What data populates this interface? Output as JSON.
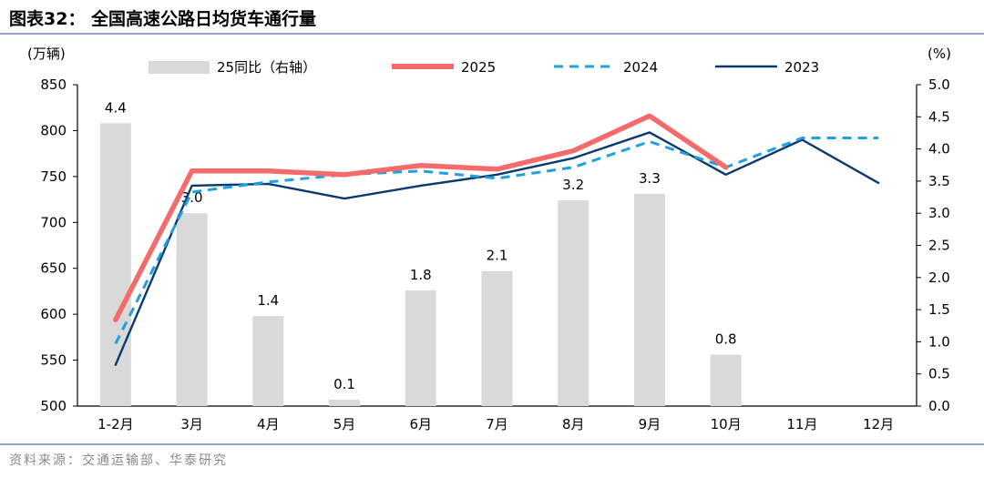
{
  "header": {
    "title": "图表32：  全国高速公路日均货车通行量"
  },
  "source": "资料来源：交通运输部、华泰研究",
  "chart_data": {
    "type": "bar+line",
    "categories": [
      "1-2月",
      "3月",
      "4月",
      "5月",
      "6月",
      "7月",
      "8月",
      "9月",
      "10月",
      "11月",
      "12月"
    ],
    "left_axis": {
      "unit": "(万辆)",
      "ylim": [
        500,
        850
      ],
      "ticks": [
        "500",
        "550",
        "600",
        "650",
        "700",
        "750",
        "800",
        "850"
      ]
    },
    "right_axis": {
      "unit": "(%)",
      "ylim": [
        0,
        5
      ],
      "ticks": [
        "0.0",
        "0.5",
        "1.0",
        "1.5",
        "2.0",
        "2.5",
        "3.0",
        "3.5",
        "4.0",
        "4.5",
        "5.0"
      ]
    },
    "bar_series": {
      "name": "25同比（右轴）",
      "values": [
        4.4,
        3.0,
        1.4,
        0.1,
        1.8,
        2.1,
        3.2,
        3.3,
        0.8,
        null,
        null
      ],
      "labels": [
        "4.4",
        "3.0",
        "1.4",
        "0.1",
        "1.8",
        "2.1",
        "3.2",
        "3.3",
        "0.8",
        "",
        ""
      ],
      "color": "#d9d9d9"
    },
    "line_series": [
      {
        "name": "2025",
        "values": [
          594,
          756,
          756,
          752,
          762,
          758,
          778,
          816,
          760,
          null,
          null
        ],
        "color": "#f36b6b",
        "style": "solid-thick"
      },
      {
        "name": "2024",
        "values": [
          568,
          733,
          744,
          752,
          756,
          748,
          760,
          788,
          760,
          792,
          792
        ],
        "color": "#1fa0e0",
        "style": "dashed"
      },
      {
        "name": "2023",
        "values": [
          545,
          740,
          742,
          726,
          740,
          752,
          770,
          798,
          752,
          790,
          743
        ],
        "color": "#0b3a6e",
        "style": "solid"
      }
    ]
  }
}
